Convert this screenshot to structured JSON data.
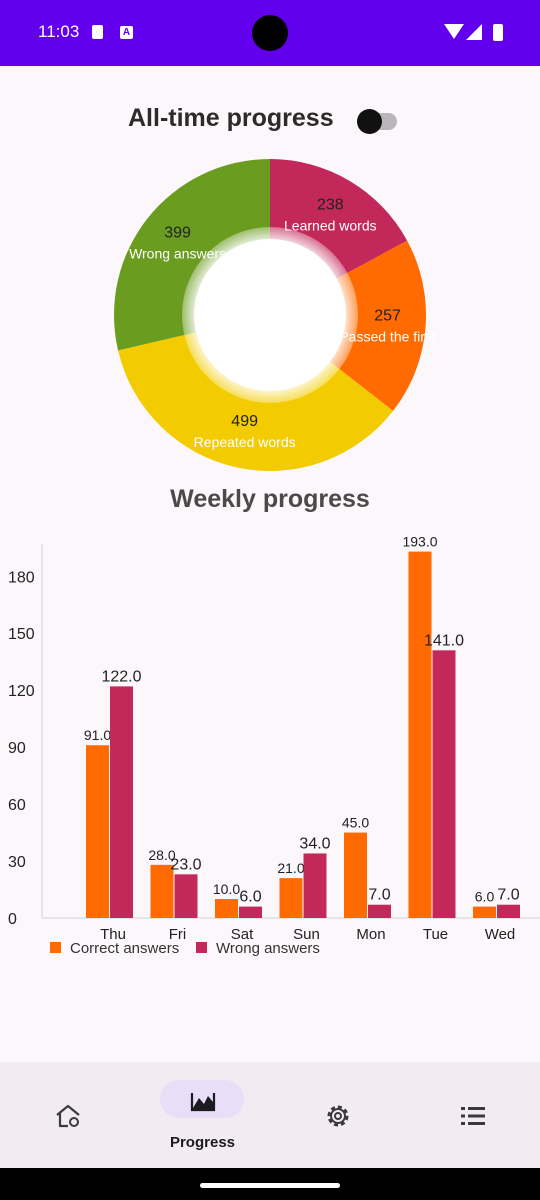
{
  "status": {
    "time": "11:03"
  },
  "title": "All-time progress",
  "toggle_on": false,
  "donut": {
    "slices": [
      {
        "value": "238",
        "label": "Learned words",
        "color": "#c2295a"
      },
      {
        "value": "257",
        "label": "Passed the first",
        "color": "#ff6b00"
      },
      {
        "value": "499",
        "label": "Repeated words",
        "color": "#f2cc00"
      },
      {
        "value": "399",
        "label": "Wrong answers",
        "color": "#6a9c1f"
      }
    ]
  },
  "weekly_title": "Weekly progress",
  "chart_data": {
    "type": "bar",
    "categories": [
      "Thu",
      "Fri",
      "Sat",
      "Sun",
      "Mon",
      "Tue",
      "Wed"
    ],
    "series": [
      {
        "name": "Correct answers",
        "values": [
          91.0,
          28.0,
          10.0,
          21.0,
          45.0,
          193.0,
          6.0
        ],
        "color": "#ff6b00"
      },
      {
        "name": "Wrong answers",
        "values": [
          122.0,
          23.0,
          6.0,
          34.0,
          7.0,
          141.0,
          7.0
        ],
        "color": "#c2295a"
      }
    ],
    "y_ticks": [
      "0",
      "30",
      "60",
      "90",
      "120",
      "150",
      "180"
    ],
    "ylim": [
      0,
      197
    ],
    "legend_position": "bottom-left"
  },
  "nav": [
    {
      "label": "",
      "icon": "home-icon"
    },
    {
      "label": "Progress",
      "icon": "progress-icon"
    },
    {
      "label": "",
      "icon": "settings-icon"
    },
    {
      "label": "",
      "icon": "list-icon"
    }
  ]
}
